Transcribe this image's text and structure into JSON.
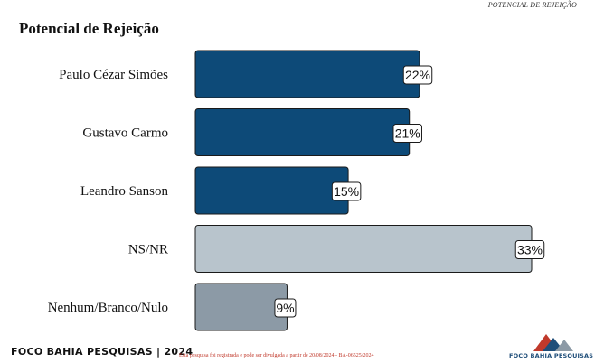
{
  "header_tag": "POTENCIAL DE REJEIÇÃO",
  "chart_data": {
    "type": "bar",
    "orientation": "horizontal",
    "title": "Potencial de Rejeição",
    "categories": [
      "Paulo Cézar Simões",
      "Gustavo Carmo",
      "Leandro Sanson",
      "NS/NR",
      "Nenhum/Branco/Nulo"
    ],
    "values": [
      22,
      21,
      15,
      33,
      9
    ],
    "value_labels": [
      "22%",
      "21%",
      "15%",
      "33%",
      "9%"
    ],
    "bar_colors": [
      "#0d4a78",
      "#0d4a78",
      "#0d4a78",
      "#b8c4cc",
      "#8c9aa6"
    ],
    "xlim": [
      0,
      33
    ],
    "grid": false,
    "legend": "none"
  },
  "footer": {
    "left": "FOCO BAHIA PESQUISAS | 2024",
    "note": "Esta pesquisa foi registrada e pode ser divulgada a partir de 20/08/2024 - BA-06525/2024",
    "logo_text": "FOCO BAHIA PESQUISAS"
  }
}
